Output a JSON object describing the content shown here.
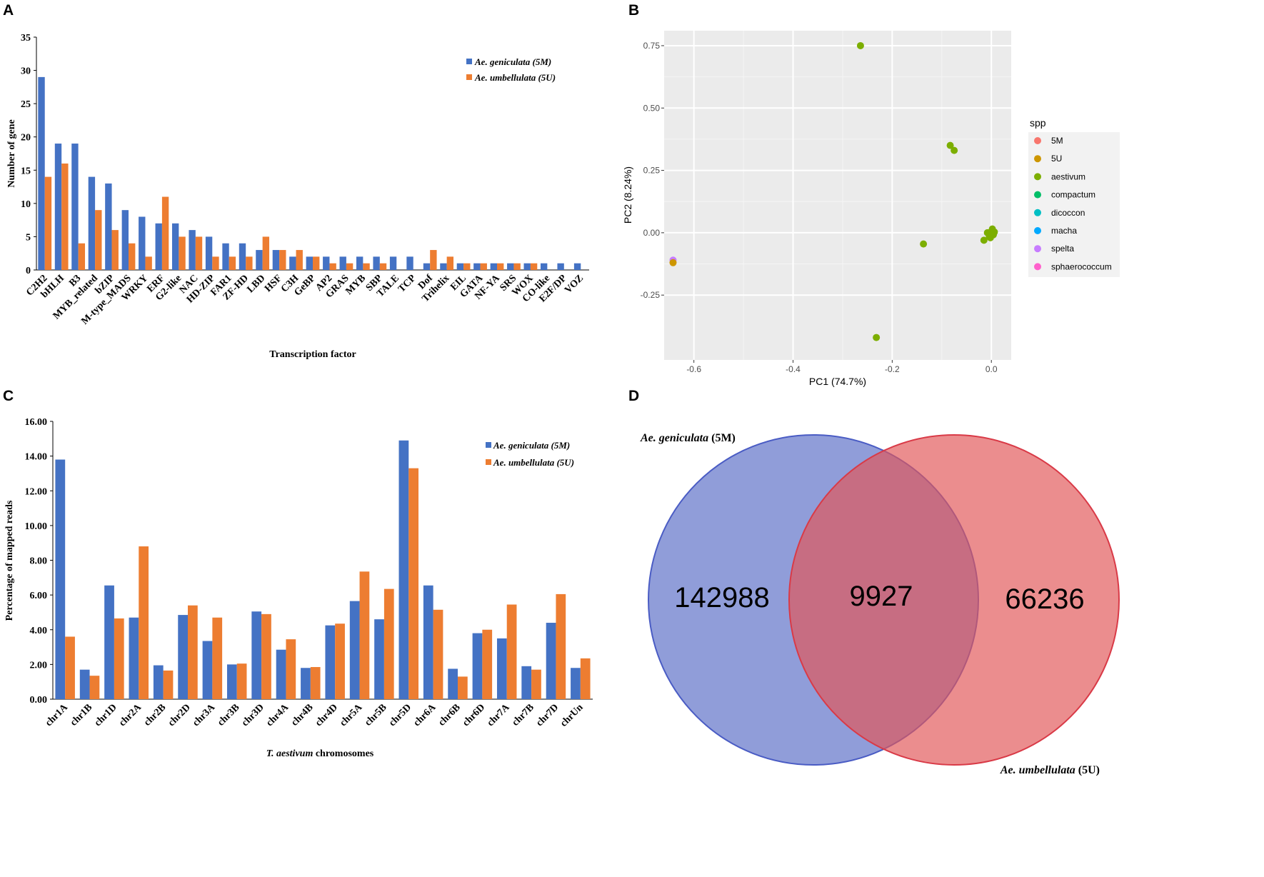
{
  "panels": {
    "a": "A",
    "b": "B",
    "c": "C",
    "d": "D"
  },
  "colors": {
    "blue": "#4472C4",
    "orange": "#ED7D31"
  },
  "chart_data": [
    {
      "panel": "A",
      "type": "bar",
      "xlabel": "Transcription factor",
      "ylabel": "Number of gene",
      "ylim": [
        0,
        35
      ],
      "yticks": [
        "0",
        "5",
        "10",
        "15",
        "20",
        "25",
        "30",
        "35"
      ],
      "legend_position": "top-right",
      "categories": [
        "C2H2",
        "bHLH",
        "B3",
        "MYB_related",
        "bZIP",
        "M-type_MADS",
        "WRKY",
        "ERF",
        "G2-like",
        "NAC",
        "HD-ZIP",
        "FAR1",
        "ZF-HD",
        "LBD",
        "HSF",
        "C3H",
        "GeBP",
        "AP2",
        "GRAS",
        "MYB",
        "SBP",
        "TALE",
        "TCP",
        "Dof",
        "Trihelix",
        "EIL",
        "GATA",
        "NF-YA",
        "SRS",
        "WOX",
        "CO-like",
        "E2F/DP",
        "VOZ"
      ],
      "series": [
        {
          "name": "Ae. geniculata (5M)",
          "color": "#4472C4",
          "values": [
            29,
            19,
            19,
            14,
            13,
            9,
            8,
            7,
            7,
            6,
            5,
            4,
            4,
            3,
            3,
            2,
            2,
            2,
            2,
            2,
            2,
            2,
            2,
            1,
            1,
            1,
            1,
            1,
            1,
            1,
            1,
            1,
            1
          ]
        },
        {
          "name": "Ae. umbellulata (5U)",
          "color": "#ED7D31",
          "values": [
            14,
            16,
            4,
            9,
            6,
            4,
            2,
            11,
            5,
            5,
            2,
            2,
            2,
            5,
            3,
            3,
            2,
            1,
            1,
            1,
            1,
            0,
            0,
            3,
            2,
            1,
            1,
            1,
            1,
            1,
            0,
            0,
            0
          ]
        }
      ]
    },
    {
      "panel": "B",
      "type": "scatter",
      "xlabel": "PC1 (74.7%)",
      "ylabel": "PC2 (8.24%)",
      "xlim": [
        -0.66,
        0.04
      ],
      "ylim": [
        -0.51,
        0.81
      ],
      "xticks": [
        -0.6,
        -0.4,
        -0.2,
        0.0
      ],
      "xtick_labels": [
        "-0.6",
        "-0.4",
        "-0.2",
        "0.0"
      ],
      "yticks": [
        -0.25,
        0.0,
        0.25,
        0.5,
        0.75
      ],
      "ytick_labels": [
        "-0.25",
        "0.00",
        "0.25",
        "0.50",
        "0.75"
      ],
      "legend_title": "spp",
      "legend_position": "right",
      "groups": [
        {
          "name": "5M",
          "color": "#F8766D"
        },
        {
          "name": "5U",
          "color": "#CD9600"
        },
        {
          "name": "aestivum",
          "color": "#7CAE00"
        },
        {
          "name": "compactum",
          "color": "#00BE67"
        },
        {
          "name": "dicoccon",
          "color": "#00BFC4"
        },
        {
          "name": "macha",
          "color": "#00A9FF"
        },
        {
          "name": "spelta",
          "color": "#C77CFF"
        },
        {
          "name": "sphaerococcum",
          "color": "#FF61CC"
        }
      ],
      "points": [
        {
          "group": "spelta",
          "x": -0.642,
          "y": -0.11
        },
        {
          "group": "5U",
          "x": -0.642,
          "y": -0.12
        },
        {
          "group": "aestivum",
          "x": -0.264,
          "y": 0.75
        },
        {
          "group": "aestivum",
          "x": -0.083,
          "y": 0.35
        },
        {
          "group": "aestivum",
          "x": -0.075,
          "y": 0.33
        },
        {
          "group": "aestivum",
          "x": -0.137,
          "y": -0.045
        },
        {
          "group": "aestivum",
          "x": -0.232,
          "y": -0.42
        },
        {
          "group": "aestivum",
          "x": -0.015,
          "y": -0.03
        },
        {
          "group": "aestivum",
          "x": -0.004,
          "y": -0.015
        },
        {
          "group": "aestivum",
          "x": 0.0,
          "y": 0.005
        },
        {
          "group": "aestivum",
          "x": 0.002,
          "y": 0.015
        },
        {
          "group": "aestivum",
          "x": 0.004,
          "y": -0.008
        },
        {
          "group": "aestivum",
          "x": -0.008,
          "y": 0.0
        },
        {
          "group": "aestivum",
          "x": 0.006,
          "y": 0.003
        },
        {
          "group": "aestivum",
          "x": -0.002,
          "y": -0.02
        }
      ]
    },
    {
      "panel": "C",
      "type": "bar",
      "xlabel_italic": "T. aestivum",
      "xlabel_rest": " chromosomes",
      "ylabel": "Percentage of  mapped reads",
      "ylim": [
        0,
        16
      ],
      "yticks": [
        "0.00",
        "2.00",
        "4.00",
        "6.00",
        "8.00",
        "10.00",
        "12.00",
        "14.00",
        "16.00"
      ],
      "legend_position": "top-right",
      "categories": [
        "chr1A",
        "chr1B",
        "chr1D",
        "chr2A",
        "chr2B",
        "chr2D",
        "chr3A",
        "chr3B",
        "chr3D",
        "chr4A",
        "chr4B",
        "chr4D",
        "chr5A",
        "chr5B",
        "chr5D",
        "chr6A",
        "chr6B",
        "chr6D",
        "chr7A",
        "chr7B",
        "chr7D",
        "chrUn"
      ],
      "series": [
        {
          "name": "Ae. geniculata (5M)",
          "color": "#4472C4",
          "values": [
            13.8,
            1.7,
            6.55,
            4.7,
            1.95,
            4.85,
            3.35,
            2.0,
            5.05,
            2.85,
            1.8,
            4.25,
            5.65,
            4.6,
            14.9,
            6.55,
            1.75,
            3.8,
            3.5,
            1.9,
            4.4,
            1.8
          ]
        },
        {
          "name": "Ae. umbellulata (5U)",
          "color": "#ED7D31",
          "values": [
            3.6,
            1.35,
            4.65,
            8.8,
            1.65,
            5.4,
            4.7,
            2.05,
            4.9,
            3.45,
            1.85,
            4.35,
            7.35,
            6.35,
            13.3,
            5.15,
            1.3,
            4.0,
            5.45,
            1.7,
            6.05,
            2.35
          ]
        }
      ]
    }
  ],
  "venn": {
    "left_label_italic": "Ae. geniculata",
    "left_label_rest": " (5M)",
    "right_label_italic": "Ae. umbellulata",
    "right_label_rest": " (5U)",
    "left_only": "142988",
    "overlap": "9927",
    "right_only": "66236",
    "left_color": "#5B6FC7",
    "right_color": "#E15759"
  }
}
